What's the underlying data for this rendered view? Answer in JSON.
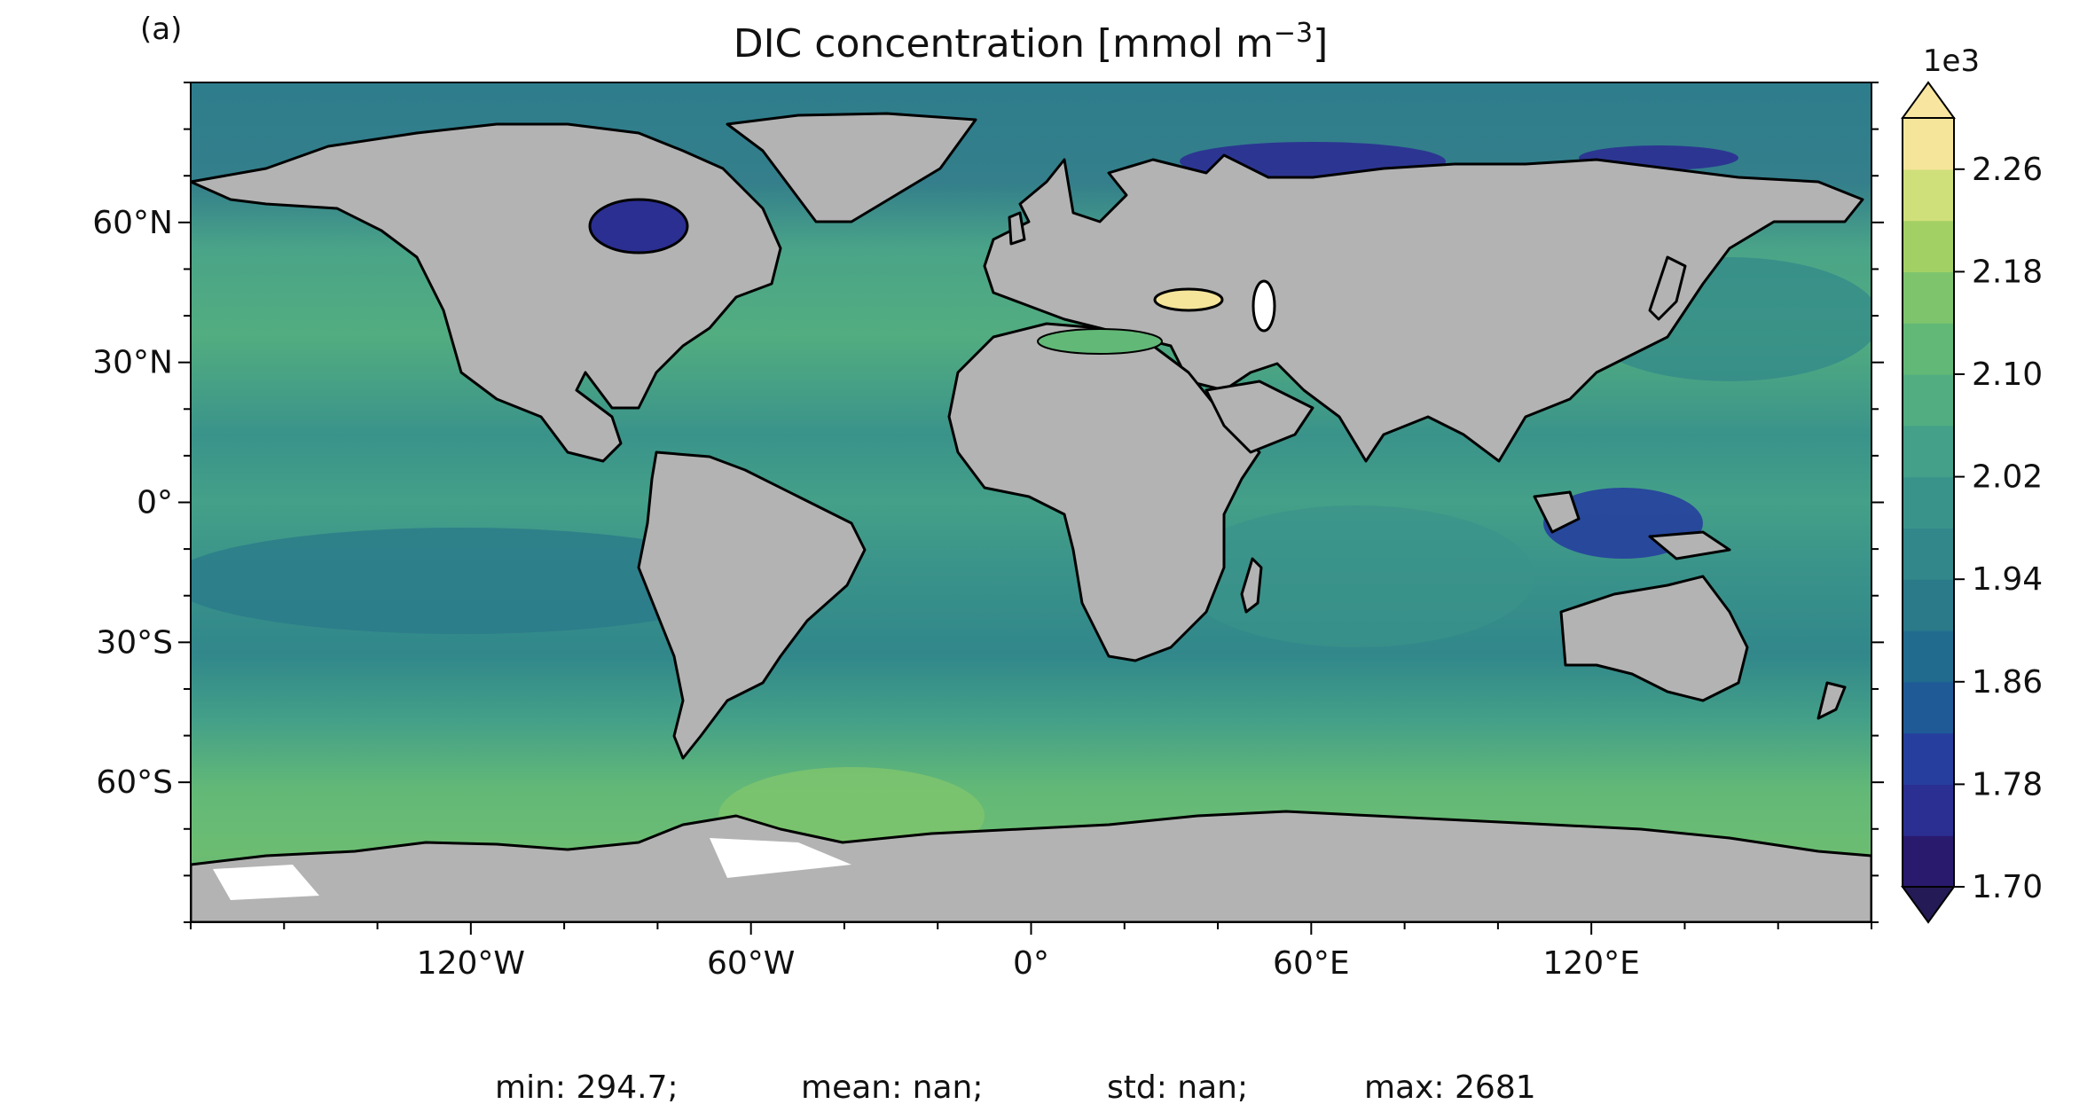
{
  "panel_label": "(a)",
  "title_main": "DIC concentration [mmol m",
  "title_sup": "−3",
  "title_end": "]",
  "footer": {
    "min": "min: 294.7;",
    "mean": "mean: nan;",
    "std": "std: nan;",
    "max": "max: 2681"
  },
  "chart_data": {
    "type": "heatmap",
    "title": "DIC concentration [mmol m−3]",
    "projection": "equirectangular world map",
    "lon_range": [
      -180,
      180
    ],
    "lat_range": [
      -90,
      90
    ],
    "x_ticks": [
      "120°W",
      "60°W",
      "0°",
      "60°E",
      "120°E"
    ],
    "x_tick_values": [
      -120,
      -60,
      0,
      60,
      120
    ],
    "y_ticks": [
      "60°N",
      "30°N",
      "0°",
      "30°S",
      "60°S"
    ],
    "y_tick_values": [
      60,
      30,
      0,
      -30,
      -60
    ],
    "land_color": "#b3b3b3",
    "colorbar": {
      "multiplier_label": "1e3",
      "tick_labels": [
        "2.26",
        "2.18",
        "2.10",
        "2.02",
        "1.94",
        "1.86",
        "1.78",
        "1.70"
      ],
      "tick_values": [
        2.26,
        2.18,
        2.1,
        2.02,
        1.94,
        1.86,
        1.78,
        1.7
      ],
      "range": [
        1.7,
        2.3
      ],
      "levels": 15,
      "extend": "both",
      "colormap": [
        "#2a1a6e",
        "#2b2f92",
        "#263f9e",
        "#1f5a97",
        "#216b8f",
        "#2a7a8a",
        "#31878a",
        "#3a938a",
        "#44a088",
        "#52ad80",
        "#62b877",
        "#7ec46d",
        "#a3d065",
        "#cfe07a",
        "#f5e59a"
      ],
      "over_color": "#f8e6a0",
      "under_color": "#241a55"
    },
    "statistics": {
      "min": 294.7,
      "mean": "nan",
      "std": "nan",
      "max": 2681
    }
  }
}
